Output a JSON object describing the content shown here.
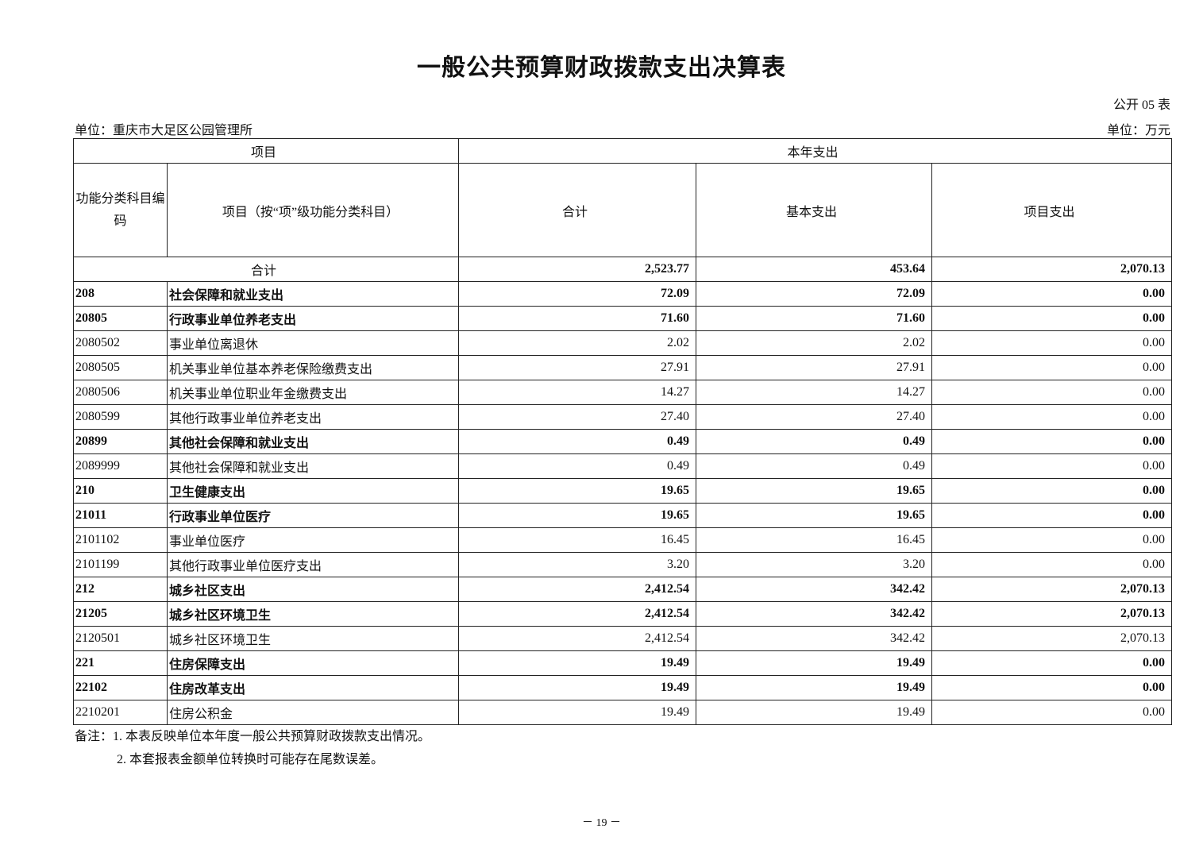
{
  "title": "一般公共预算财政拨款支出决算表",
  "form_no": "公开 05 表",
  "unit_org": "单位：重庆市大足区公园管理所",
  "unit_currency": "单位：万元",
  "header": {
    "item": "项目",
    "current_year": "本年支出",
    "code": "功能分类科目编码",
    "item_name": "项目（按“项”级功能分类科目）",
    "total": "合计",
    "basic": "基本支出",
    "project": "项目支出"
  },
  "total_row": {
    "label": "合计",
    "total": "2,523.77",
    "basic": "453.64",
    "project": "2,070.13"
  },
  "rows": [
    {
      "code": "208",
      "name": "社会保障和就业支出",
      "total": "72.09",
      "basic": "72.09",
      "project": "0.00",
      "bold": true
    },
    {
      "code": "20805",
      "name": "行政事业单位养老支出",
      "total": "71.60",
      "basic": "71.60",
      "project": "0.00",
      "bold": true
    },
    {
      "code": "2080502",
      "name": "事业单位离退休",
      "total": "2.02",
      "basic": "2.02",
      "project": "0.00",
      "bold": false
    },
    {
      "code": "2080505",
      "name": "机关事业单位基本养老保险缴费支出",
      "total": "27.91",
      "basic": "27.91",
      "project": "0.00",
      "bold": false
    },
    {
      "code": "2080506",
      "name": "机关事业单位职业年金缴费支出",
      "total": "14.27",
      "basic": "14.27",
      "project": "0.00",
      "bold": false
    },
    {
      "code": "2080599",
      "name": "其他行政事业单位养老支出",
      "total": "27.40",
      "basic": "27.40",
      "project": "0.00",
      "bold": false
    },
    {
      "code": "20899",
      "name": "其他社会保障和就业支出",
      "total": "0.49",
      "basic": "0.49",
      "project": "0.00",
      "bold": true
    },
    {
      "code": "2089999",
      "name": "其他社会保障和就业支出",
      "total": "0.49",
      "basic": "0.49",
      "project": "0.00",
      "bold": false
    },
    {
      "code": "210",
      "name": "卫生健康支出",
      "total": "19.65",
      "basic": "19.65",
      "project": "0.00",
      "bold": true
    },
    {
      "code": "21011",
      "name": "行政事业单位医疗",
      "total": "19.65",
      "basic": "19.65",
      "project": "0.00",
      "bold": true
    },
    {
      "code": "2101102",
      "name": "事业单位医疗",
      "total": "16.45",
      "basic": "16.45",
      "project": "0.00",
      "bold": false
    },
    {
      "code": "2101199",
      "name": "其他行政事业单位医疗支出",
      "total": "3.20",
      "basic": "3.20",
      "project": "0.00",
      "bold": false
    },
    {
      "code": "212",
      "name": "城乡社区支出",
      "total": "2,412.54",
      "basic": "342.42",
      "project": "2,070.13",
      "bold": true
    },
    {
      "code": "21205",
      "name": "城乡社区环境卫生",
      "total": "2,412.54",
      "basic": "342.42",
      "project": "2,070.13",
      "bold": true
    },
    {
      "code": "2120501",
      "name": "城乡社区环境卫生",
      "total": "2,412.54",
      "basic": "342.42",
      "project": "2,070.13",
      "bold": false
    },
    {
      "code": "221",
      "name": "住房保障支出",
      "total": "19.49",
      "basic": "19.49",
      "project": "0.00",
      "bold": true
    },
    {
      "code": "22102",
      "name": "住房改革支出",
      "total": "19.49",
      "basic": "19.49",
      "project": "0.00",
      "bold": true
    },
    {
      "code": "2210201",
      "name": "住房公积金",
      "total": "19.49",
      "basic": "19.49",
      "project": "0.00",
      "bold": false
    }
  ],
  "notes": [
    "备注：1. 本表反映单位本年度一般公共预算财政拨款支出情况。",
    "2. 本套报表金额单位转换时可能存在尾数误差。"
  ],
  "page_number": "－ 19 －"
}
